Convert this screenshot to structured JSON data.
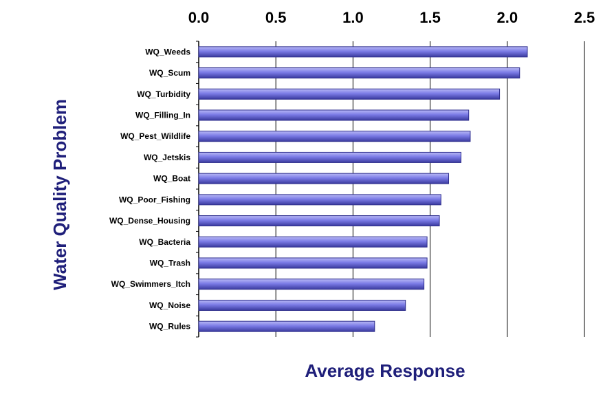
{
  "chart_data": {
    "type": "bar",
    "orientation": "horizontal",
    "title": "",
    "xlabel": "Average Response",
    "ylabel": "Water Quality Problem",
    "xlim": [
      0,
      2.5
    ],
    "x_ticks": [
      "0.0",
      "0.5",
      "1.0",
      "1.5",
      "2.0",
      "2.5"
    ],
    "x_axis_position": "top",
    "grid": "vertical",
    "legend": "none",
    "categories": [
      "WQ_Weeds",
      "WQ_Scum",
      "WQ_Turbidity",
      "WQ_Filling_In",
      "WQ_Pest_Wildlife",
      "WQ_Jetskis",
      "WQ_Boat",
      "WQ_Poor_Fishing",
      "WQ_Dense_Housing",
      "WQ_Bacteria",
      "WQ_Trash",
      "WQ_Swimmers_Itch",
      "WQ_Noise",
      "WQ_Rules"
    ],
    "values": [
      2.13,
      2.08,
      1.95,
      1.75,
      1.76,
      1.7,
      1.62,
      1.57,
      1.56,
      1.48,
      1.48,
      1.46,
      1.34,
      1.14
    ],
    "colors": {
      "bar": "#7b7be6",
      "bar_dark": "#2e2e8c",
      "title": "#1f1f7a",
      "grid": "#000000"
    }
  }
}
